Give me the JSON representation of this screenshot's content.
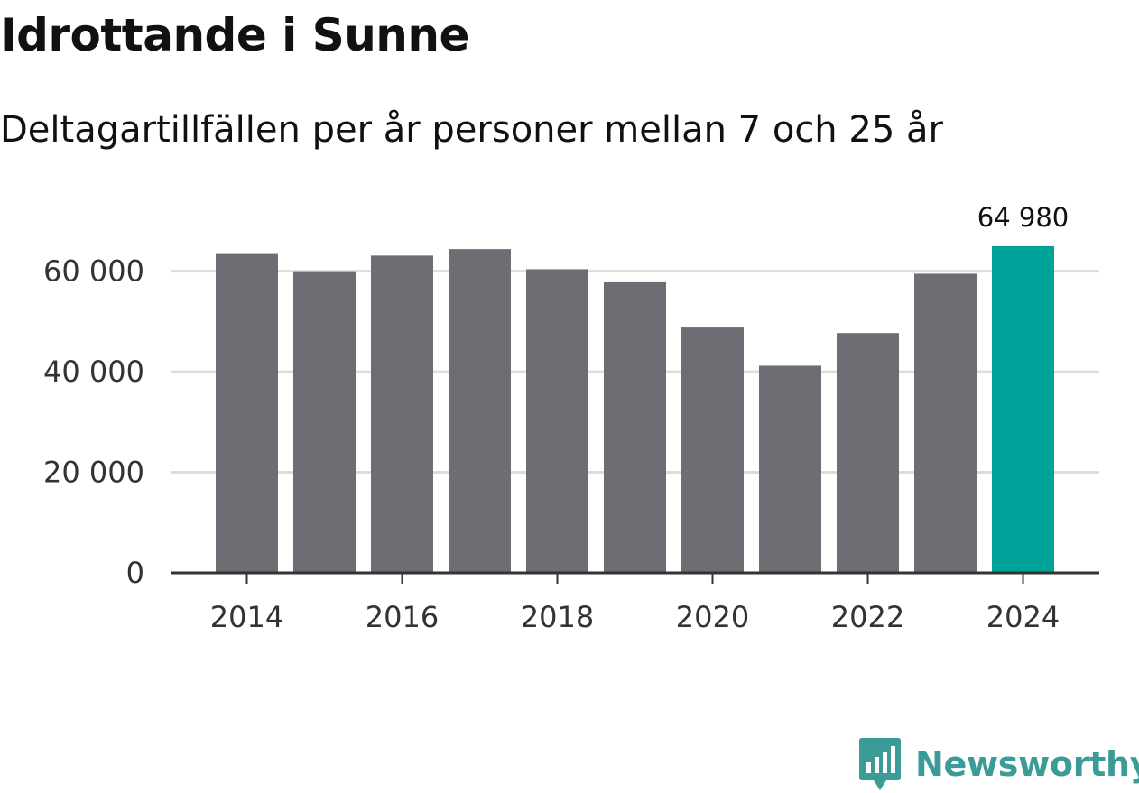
{
  "header": {
    "title": "Idrottande i Sunne",
    "subtitle": "Deltagartillfällen per år personer mellan 7 och 25 år"
  },
  "colors": {
    "bar": "#6e6d73",
    "highlight": "#00a39a",
    "grid": "#dcdcdc",
    "axis": "#333333",
    "brand": "#3a9b97"
  },
  "chart_data": {
    "type": "bar",
    "title": "Idrottande i Sunne",
    "subtitle": "Deltagartillfällen per år personer mellan 7 och 25 år",
    "xlabel": "",
    "ylabel": "",
    "categories": [
      "2014",
      "2015",
      "2016",
      "2017",
      "2018",
      "2019",
      "2020",
      "2021",
      "2022",
      "2023",
      "2024"
    ],
    "values": [
      63600,
      60000,
      63100,
      64400,
      60400,
      57800,
      48800,
      41200,
      47700,
      59500,
      64980
    ],
    "highlight_index": 10,
    "highlight_label": "64 980",
    "ylim": [
      0,
      66000
    ],
    "yticks": [
      0,
      20000,
      40000,
      60000
    ],
    "ytick_labels": [
      "0",
      "20 000",
      "40 000",
      "60 000"
    ],
    "xtick_labels": [
      "2014",
      "2016",
      "2018",
      "2020",
      "2022",
      "2024"
    ],
    "grid": true
  },
  "footer": {
    "brand": "Newsworthy",
    "logo_icon": "newsworthy-logo-icon"
  }
}
